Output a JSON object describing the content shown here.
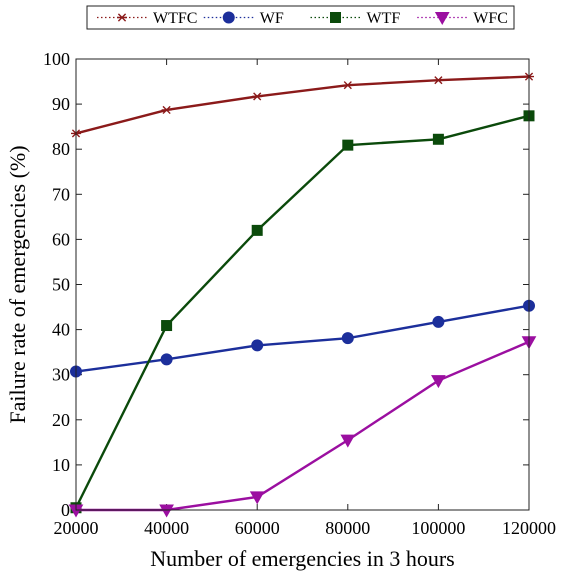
{
  "chart_data": {
    "type": "line",
    "title": "",
    "xlabel": "Number of emergencies in 3 hours",
    "ylabel": "Failure rate of emergencies (%)",
    "x": [
      20000,
      40000,
      60000,
      80000,
      100000,
      120000
    ],
    "xticks": [
      "20000",
      "40000",
      "60000",
      "80000",
      "100000",
      "120000"
    ],
    "yticks": [
      "0",
      "10",
      "20",
      "30",
      "40",
      "50",
      "60",
      "70",
      "80",
      "90",
      "100"
    ],
    "xlim": [
      20000,
      120000
    ],
    "ylim": [
      0,
      100
    ],
    "grid": false,
    "legend_position": "top-center",
    "series": [
      {
        "name": "WTFC",
        "color": "#8b1a1a",
        "marker": "asterisk",
        "values": [
          83.5,
          88.7,
          91.7,
          94.2,
          95.3,
          96.1
        ]
      },
      {
        "name": "WF",
        "color": "#1c2f9b",
        "marker": "circle",
        "values": [
          30.7,
          33.4,
          36.5,
          38.1,
          41.7,
          45.3
        ]
      },
      {
        "name": "WTF",
        "color": "#0b4a0b",
        "marker": "square",
        "values": [
          0.5,
          40.9,
          62.0,
          80.9,
          82.2,
          87.4
        ]
      },
      {
        "name": "WFC",
        "color": "#9b0fa0",
        "marker": "triangle-down",
        "values": [
          0.0,
          0.0,
          2.9,
          15.5,
          28.7,
          37.3
        ]
      }
    ]
  }
}
